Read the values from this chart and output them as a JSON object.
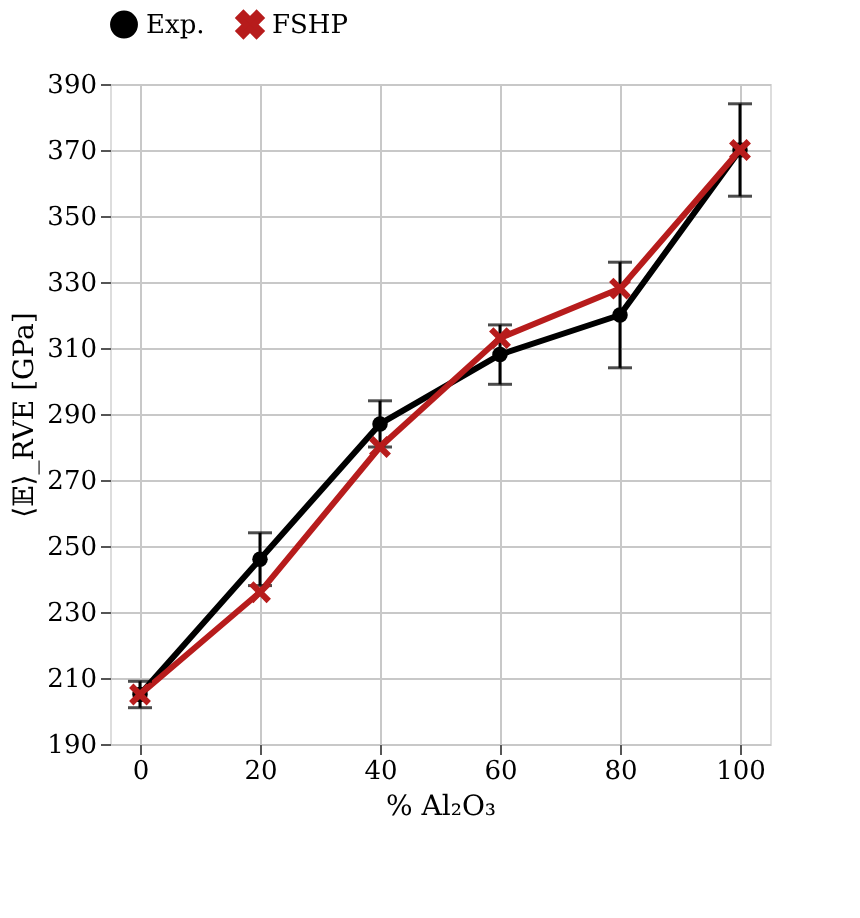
{
  "chart_data": {
    "type": "line",
    "xlabel": "% Al₂O₃",
    "ylabel": "⟨𝔼⟩_RVE [GPa]",
    "x": [
      0,
      20,
      40,
      60,
      80,
      100
    ],
    "series": [
      {
        "name": "Exp.",
        "color": "#000000",
        "marker": "circle",
        "values": [
          205,
          246,
          287,
          308,
          320,
          370
        ],
        "errors": [
          4,
          8,
          7,
          9,
          16,
          14
        ]
      },
      {
        "name": "FSHP",
        "color": "#b71c1c",
        "marker": "cross",
        "values": [
          205,
          236,
          280,
          313,
          328,
          370
        ]
      }
    ],
    "xlim": [
      -5,
      105
    ],
    "xticks": [
      0,
      20,
      40,
      60,
      80,
      100
    ],
    "ylim": [
      190,
      390
    ],
    "yticks": [
      190,
      210,
      230,
      250,
      270,
      290,
      310,
      330,
      350,
      370,
      390
    ],
    "grid": true,
    "legend": "top",
    "line_style": "solid"
  }
}
